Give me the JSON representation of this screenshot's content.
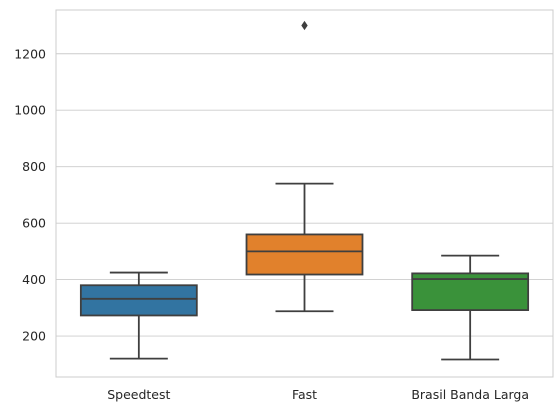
{
  "chart_data": {
    "type": "box",
    "categories": [
      "Speedtest",
      "Fast",
      "Brasil Banda Larga"
    ],
    "boxes": [
      {
        "category": "Speedtest",
        "whisker_low": 120,
        "q1": 273,
        "median": 332,
        "q3": 380,
        "whisker_high": 425,
        "outliers": [],
        "color": "#3274a1"
      },
      {
        "category": "Fast",
        "whisker_low": 288,
        "q1": 418,
        "median": 500,
        "q3": 560,
        "whisker_high": 740,
        "outliers": [
          1300
        ],
        "color": "#e1812c"
      },
      {
        "category": "Brasil Banda Larga",
        "whisker_low": 117,
        "q1": 292,
        "median": 402,
        "q3": 422,
        "whisker_high": 485,
        "outliers": [],
        "color": "#3a923a"
      }
    ],
    "yticks": [
      200,
      400,
      600,
      800,
      1000,
      1200
    ],
    "ylim": [
      55,
      1355
    ],
    "title": "",
    "xlabel": "",
    "ylabel": "",
    "grid": "horizontal",
    "line_color": "#3f3f3f"
  }
}
